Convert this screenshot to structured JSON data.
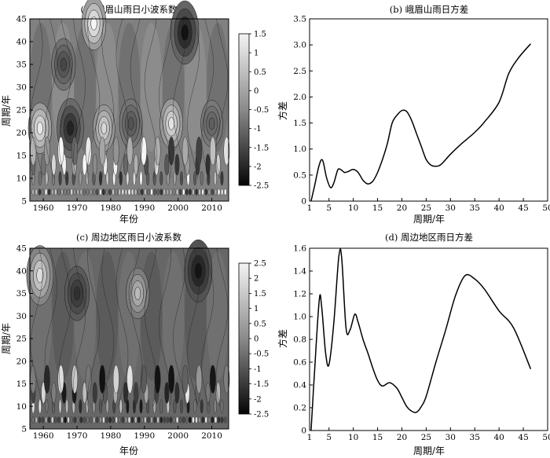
{
  "chart_data": [
    {
      "type": "heatmap",
      "title": "(a) 峨眉山雨日小波系数",
      "xlabel": "年份",
      "ylabel": "周期/年",
      "xlim": [
        1956,
        2015
      ],
      "ylim": [
        5,
        45
      ],
      "xticks": [
        "1960",
        "1970",
        "1980",
        "1990",
        "2000",
        "2010"
      ],
      "yticks": [
        "5",
        "10",
        "15",
        "20",
        "25",
        "30",
        "35",
        "40",
        "45"
      ],
      "colorbar": {
        "min": -2.5,
        "max": 1.5,
        "ticks": [
          "1.5",
          "1",
          "0.5",
          "0",
          "-0.5",
          "-1",
          "-1.5",
          "-2",
          "-2.5"
        ]
      },
      "blobs": [
        {
          "x": 1966,
          "y": 35,
          "value": -1.4
        },
        {
          "x": 1968,
          "y": 21,
          "value": -2.0
        },
        {
          "x": 1975,
          "y": 44,
          "value": 1.5
        },
        {
          "x": 1959,
          "y": 21,
          "value": 1.3
        },
        {
          "x": 1978,
          "y": 21,
          "value": 1.0
        },
        {
          "x": 1986,
          "y": 22,
          "value": -1.2
        },
        {
          "x": 1998,
          "y": 22,
          "value": 1.2
        },
        {
          "x": 2002,
          "y": 42,
          "value": -2.3
        },
        {
          "x": 2010,
          "y": 22,
          "value": -1.0
        }
      ]
    },
    {
      "type": "line",
      "title": "(b) 峨眉山雨日方差",
      "xlabel": "周期/年",
      "ylabel": "方差",
      "xlim": [
        1,
        50
      ],
      "ylim": [
        0,
        3.5
      ],
      "xticks": [
        "1",
        "5",
        "10",
        "15",
        "20",
        "25",
        "30",
        "35",
        "40",
        "45",
        "50"
      ],
      "yticks": [
        "0",
        "0.5",
        "1.0",
        "1.5",
        "2.0",
        "2.5",
        "3.0",
        "3.5"
      ],
      "x": [
        1.3,
        2,
        3,
        3.7,
        4.5,
        5.3,
        6,
        6.8,
        7.5,
        8.2,
        9,
        10,
        11,
        12,
        13,
        14,
        15,
        16,
        17,
        18,
        19,
        20,
        21,
        22,
        23,
        24,
        25,
        26,
        27,
        28,
        30,
        32,
        35,
        37,
        40,
        42,
        44,
        46.5
      ],
      "y": [
        0.0,
        0.28,
        0.7,
        0.78,
        0.45,
        0.26,
        0.35,
        0.6,
        0.6,
        0.55,
        0.57,
        0.61,
        0.55,
        0.4,
        0.33,
        0.38,
        0.55,
        0.8,
        1.1,
        1.5,
        1.65,
        1.74,
        1.72,
        1.55,
        1.3,
        1.05,
        0.8,
        0.69,
        0.67,
        0.7,
        0.9,
        1.08,
        1.32,
        1.52,
        1.9,
        2.45,
        2.75,
        3.02
      ]
    },
    {
      "type": "heatmap",
      "title": "(c) 周边地区雨日小波系数",
      "xlabel": "年份",
      "ylabel": "周期/年",
      "xlim": [
        1956,
        2015
      ],
      "ylim": [
        5,
        45
      ],
      "xticks": [
        "1960",
        "1970",
        "1980",
        "1990",
        "2000",
        "2010"
      ],
      "yticks": [
        "5",
        "10",
        "15",
        "20",
        "25",
        "30",
        "35",
        "40",
        "45"
      ],
      "colorbar": {
        "min": -2.5,
        "max": 2.5,
        "ticks": [
          "2.5",
          "2",
          "1.5",
          "1",
          "0.5",
          "0",
          "-0.5",
          "-1",
          "-1.5",
          "-2",
          "-2.5"
        ]
      },
      "blobs": [
        {
          "x": 1959,
          "y": 39,
          "value": 2.0
        },
        {
          "x": 1970,
          "y": 35,
          "value": -1.6
        },
        {
          "x": 1988,
          "y": 35,
          "value": 1.3
        },
        {
          "x": 2006,
          "y": 40,
          "value": -2.2
        }
      ]
    },
    {
      "type": "line",
      "title": "(d) 周边地区雨日方差",
      "xlabel": "周期/年",
      "ylabel": "方差",
      "xlim": [
        1,
        50
      ],
      "ylim": [
        0,
        1.6
      ],
      "xticks": [
        "1",
        "5",
        "10",
        "15",
        "20",
        "25",
        "30",
        "35",
        "40",
        "45",
        "50"
      ],
      "yticks": [
        "0",
        "0.2",
        "0.4",
        "0.6",
        "0.8",
        "1.0",
        "1.2",
        "1.4",
        "1.6"
      ],
      "x": [
        1.3,
        2,
        3,
        3.5,
        4.3,
        5,
        6,
        7,
        7.6,
        8.5,
        9.3,
        10.3,
        11,
        12,
        13,
        14,
        15,
        16,
        17.5,
        19,
        20,
        21,
        22,
        23,
        24,
        25,
        27,
        29,
        31,
        33,
        35,
        37,
        40,
        43,
        46.5
      ],
      "y": [
        0.0,
        0.5,
        1.15,
        1.08,
        0.68,
        0.58,
        0.95,
        1.52,
        1.52,
        0.9,
        0.88,
        1.02,
        0.95,
        0.8,
        0.68,
        0.55,
        0.44,
        0.39,
        0.42,
        0.37,
        0.29,
        0.21,
        0.17,
        0.16,
        0.21,
        0.3,
        0.6,
        0.88,
        1.18,
        1.36,
        1.33,
        1.24,
        1.05,
        0.9,
        0.54
      ]
    }
  ]
}
